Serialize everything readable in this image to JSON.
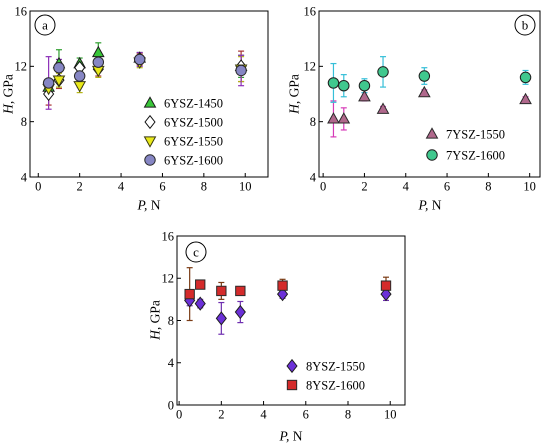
{
  "chart_data": [
    {
      "type": "scatter",
      "panel_label": "a",
      "xlabel": "P, N",
      "ylabel": "H, GPa",
      "xlim": [
        -0.4,
        11.1
      ],
      "ylim": [
        4,
        16
      ],
      "xticks": [
        0,
        2,
        4,
        6,
        8,
        10
      ],
      "yticks": [
        4,
        8,
        12,
        16
      ],
      "grid": false,
      "legend_position": "lower-right",
      "series": [
        {
          "name": "6YSZ-1450",
          "marker": "triangle-up",
          "color": "#39c639",
          "edge_color": "#1b1b1b",
          "error_color": "#2e9e2e",
          "x": [
            0.5,
            1.0,
            2.0,
            2.9,
            4.9,
            9.8
          ],
          "y": [
            10.5,
            12.2,
            12.2,
            13.0,
            12.6,
            12.0
          ],
          "yerr": [
            0.4,
            1.0,
            0.4,
            0.7,
            0.4,
            0.8
          ]
        },
        {
          "name": "6YSZ-1500",
          "marker": "diamond",
          "color": "#ffffff",
          "edge_color": "#111111",
          "error_color": "#a83232",
          "x": [
            0.5,
            1.0,
            2.0,
            2.9,
            4.9,
            9.8
          ],
          "y": [
            10.0,
            11.0,
            11.9,
            11.8,
            12.5,
            12.0
          ],
          "yerr": [
            0.8,
            0.6,
            0.4,
            0.5,
            0.4,
            1.1
          ]
        },
        {
          "name": "6YSZ-1550",
          "marker": "triangle-down",
          "color": "#e9e91a",
          "edge_color": "#3a3a10",
          "error_color": "#b5b512",
          "x": [
            0.5,
            1.0,
            2.0,
            2.9,
            4.9,
            9.8
          ],
          "y": [
            10.4,
            11.0,
            10.6,
            11.7,
            12.3,
            11.8
          ],
          "yerr": [
            0.5,
            0.5,
            0.5,
            0.5,
            0.4,
            0.9
          ]
        },
        {
          "name": "6YSZ-1600",
          "marker": "circle",
          "color": "#8686c4",
          "edge_color": "#2a2a2a",
          "error_color": "#8c2fb8",
          "x": [
            0.5,
            1.0,
            2.0,
            2.9,
            4.9,
            9.8
          ],
          "y": [
            10.8,
            11.9,
            11.3,
            12.3,
            12.5,
            11.7
          ],
          "yerr": [
            1.9,
            0.6,
            0.8,
            0.6,
            0.5,
            1.1
          ]
        }
      ]
    },
    {
      "type": "scatter",
      "panel_label": "b",
      "xlabel": "P, N",
      "ylabel": "H, GPa",
      "xlim": [
        -0.2,
        10.5
      ],
      "ylim": [
        4,
        16
      ],
      "xticks": [
        0,
        2,
        4,
        6,
        8,
        10
      ],
      "yticks": [
        4,
        8,
        12,
        16
      ],
      "grid": false,
      "legend_position": "lower-right",
      "series": [
        {
          "name": "7YSZ-1550",
          "marker": "triangle-up",
          "color": "#b0688c",
          "edge_color": "#2a2a2a",
          "error_color": "#d63bb8",
          "x": [
            0.5,
            1.0,
            2.0,
            2.9,
            4.9,
            9.8
          ],
          "y": [
            8.2,
            8.2,
            9.8,
            8.9,
            10.1,
            9.6
          ],
          "yerr": [
            1.3,
            0.8,
            0.3,
            0.2,
            0.2,
            0.2
          ]
        },
        {
          "name": "7YSZ-1600",
          "marker": "circle",
          "color": "#40c88e",
          "edge_color": "#1e1e1e",
          "error_color": "#35bfd8",
          "x": [
            0.5,
            1.0,
            2.0,
            2.9,
            4.9,
            9.8
          ],
          "y": [
            10.8,
            10.6,
            10.6,
            11.6,
            11.3,
            11.2
          ],
          "yerr": [
            1.4,
            0.8,
            0.5,
            1.1,
            0.6,
            0.5
          ]
        }
      ]
    },
    {
      "type": "scatter",
      "panel_label": "c",
      "xlabel": "P, N",
      "ylabel": "H, GPa",
      "xlim": [
        -0.1,
        10.7
      ],
      "ylim": [
        0,
        16
      ],
      "xticks": [
        0,
        2,
        4,
        6,
        8,
        10
      ],
      "yticks": [
        0,
        4,
        8,
        12,
        16
      ],
      "grid": false,
      "legend_position": "lower-right",
      "series": [
        {
          "name": "8YSZ-1550",
          "marker": "diamond",
          "color": "#6b30d8",
          "edge_color": "#1e1e1e",
          "error_color": "#6f2fb0",
          "x": [
            0.5,
            1.0,
            2.0,
            2.9,
            4.9,
            9.8
          ],
          "y": [
            9.9,
            9.6,
            8.2,
            8.8,
            10.5,
            10.5
          ],
          "yerr": [
            0.5,
            0.4,
            1.5,
            1.0,
            0.4,
            0.6
          ]
        },
        {
          "name": "8YSZ-1600",
          "marker": "square",
          "color": "#d42b2b",
          "edge_color": "#2a2a2a",
          "error_color": "#7a3b14",
          "x": [
            0.5,
            1.0,
            2.0,
            2.9,
            4.9,
            9.8
          ],
          "y": [
            10.5,
            11.4,
            10.8,
            10.8,
            11.3,
            11.3
          ],
          "yerr": [
            2.5,
            0.4,
            0.8,
            0.4,
            0.6,
            0.8
          ]
        }
      ]
    }
  ]
}
